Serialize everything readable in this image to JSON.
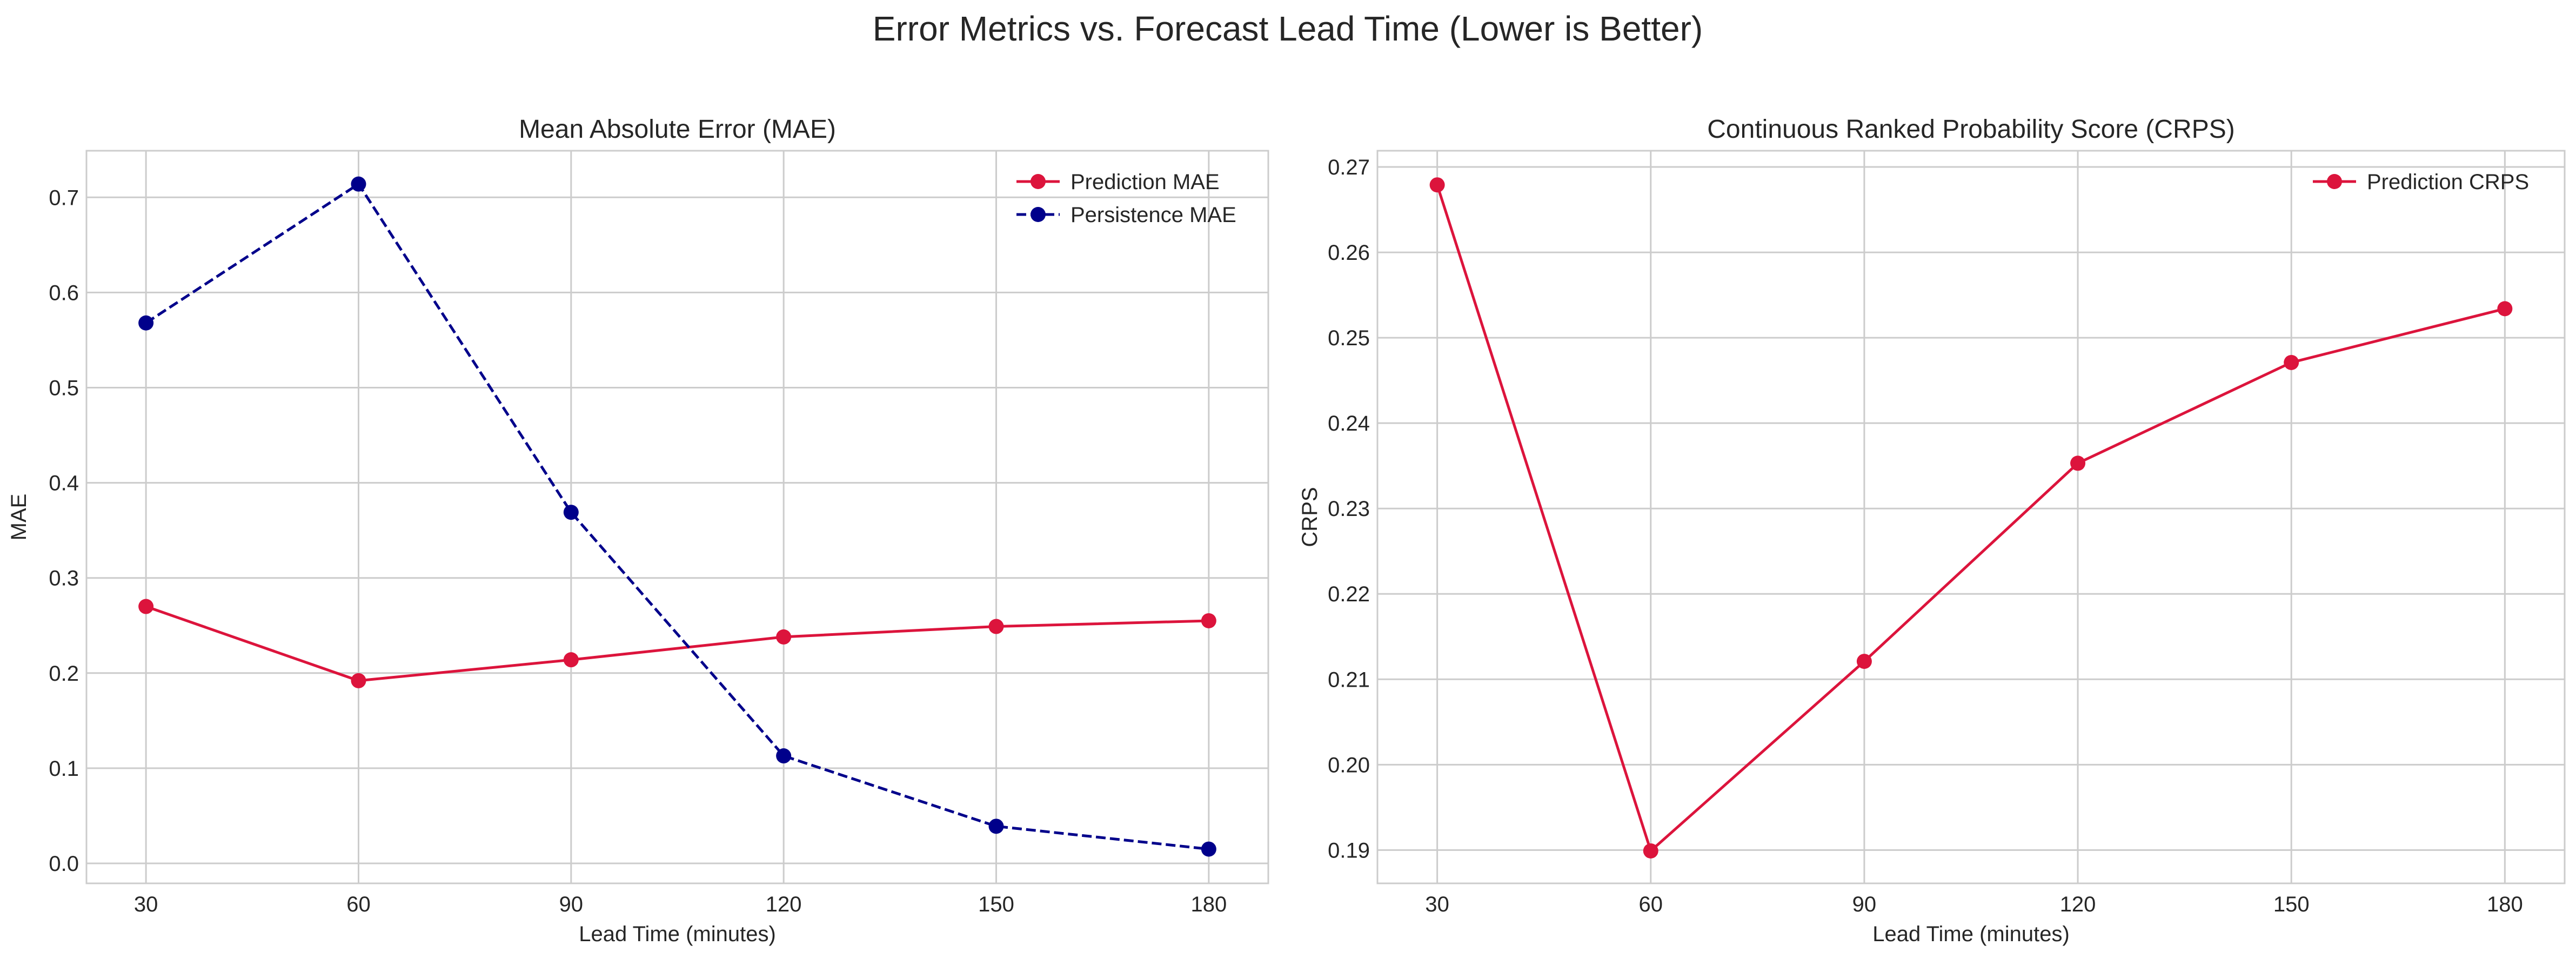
{
  "figure": {
    "suptitle": "Error Metrics vs. Forecast Lead Time (Lower is Better)"
  },
  "chart_data": [
    {
      "type": "line",
      "title": "Mean Absolute Error (MAE)",
      "xlabel": "Lead Time (minutes)",
      "ylabel": "MAE",
      "x": [
        30,
        60,
        90,
        120,
        150,
        180
      ],
      "xticks": [
        "30",
        "60",
        "90",
        "120",
        "150",
        "180"
      ],
      "xlim": [
        21.6,
        188.4
      ],
      "yticks": [
        "0.0",
        "0.1",
        "0.2",
        "0.3",
        "0.4",
        "0.5",
        "0.6",
        "0.7"
      ],
      "ylim": [
        -0.021,
        0.749
      ],
      "grid": true,
      "legend_position": "top-right",
      "series": [
        {
          "name": "Prediction MAE",
          "values": [
            0.27,
            0.192,
            0.214,
            0.238,
            0.249,
            0.255
          ],
          "color": "#dc143c",
          "linestyle": "solid",
          "marker": "circle"
        },
        {
          "name": "Persistence MAE",
          "values": [
            0.568,
            0.714,
            0.369,
            0.113,
            0.039,
            0.015
          ],
          "color": "#00008b",
          "linestyle": "dashed",
          "marker": "circle"
        }
      ]
    },
    {
      "type": "line",
      "title": "Continuous Ranked Probability Score (CRPS)",
      "xlabel": "Lead Time (minutes)",
      "ylabel": "CRPS",
      "x": [
        30,
        60,
        90,
        120,
        150,
        180
      ],
      "xticks": [
        "30",
        "60",
        "90",
        "120",
        "150",
        "180"
      ],
      "xlim": [
        21.6,
        188.4
      ],
      "yticks": [
        "0.19",
        "0.20",
        "0.21",
        "0.22",
        "0.23",
        "0.24",
        "0.25",
        "0.26",
        "0.27"
      ],
      "ylim": [
        0.1861,
        0.2719
      ],
      "grid": true,
      "legend_position": "top-right",
      "series": [
        {
          "name": "Prediction CRPS",
          "values": [
            0.2679,
            0.1899,
            0.2121,
            0.2353,
            0.2471,
            0.2534
          ],
          "color": "#dc143c",
          "linestyle": "solid",
          "marker": "circle"
        }
      ]
    }
  ]
}
